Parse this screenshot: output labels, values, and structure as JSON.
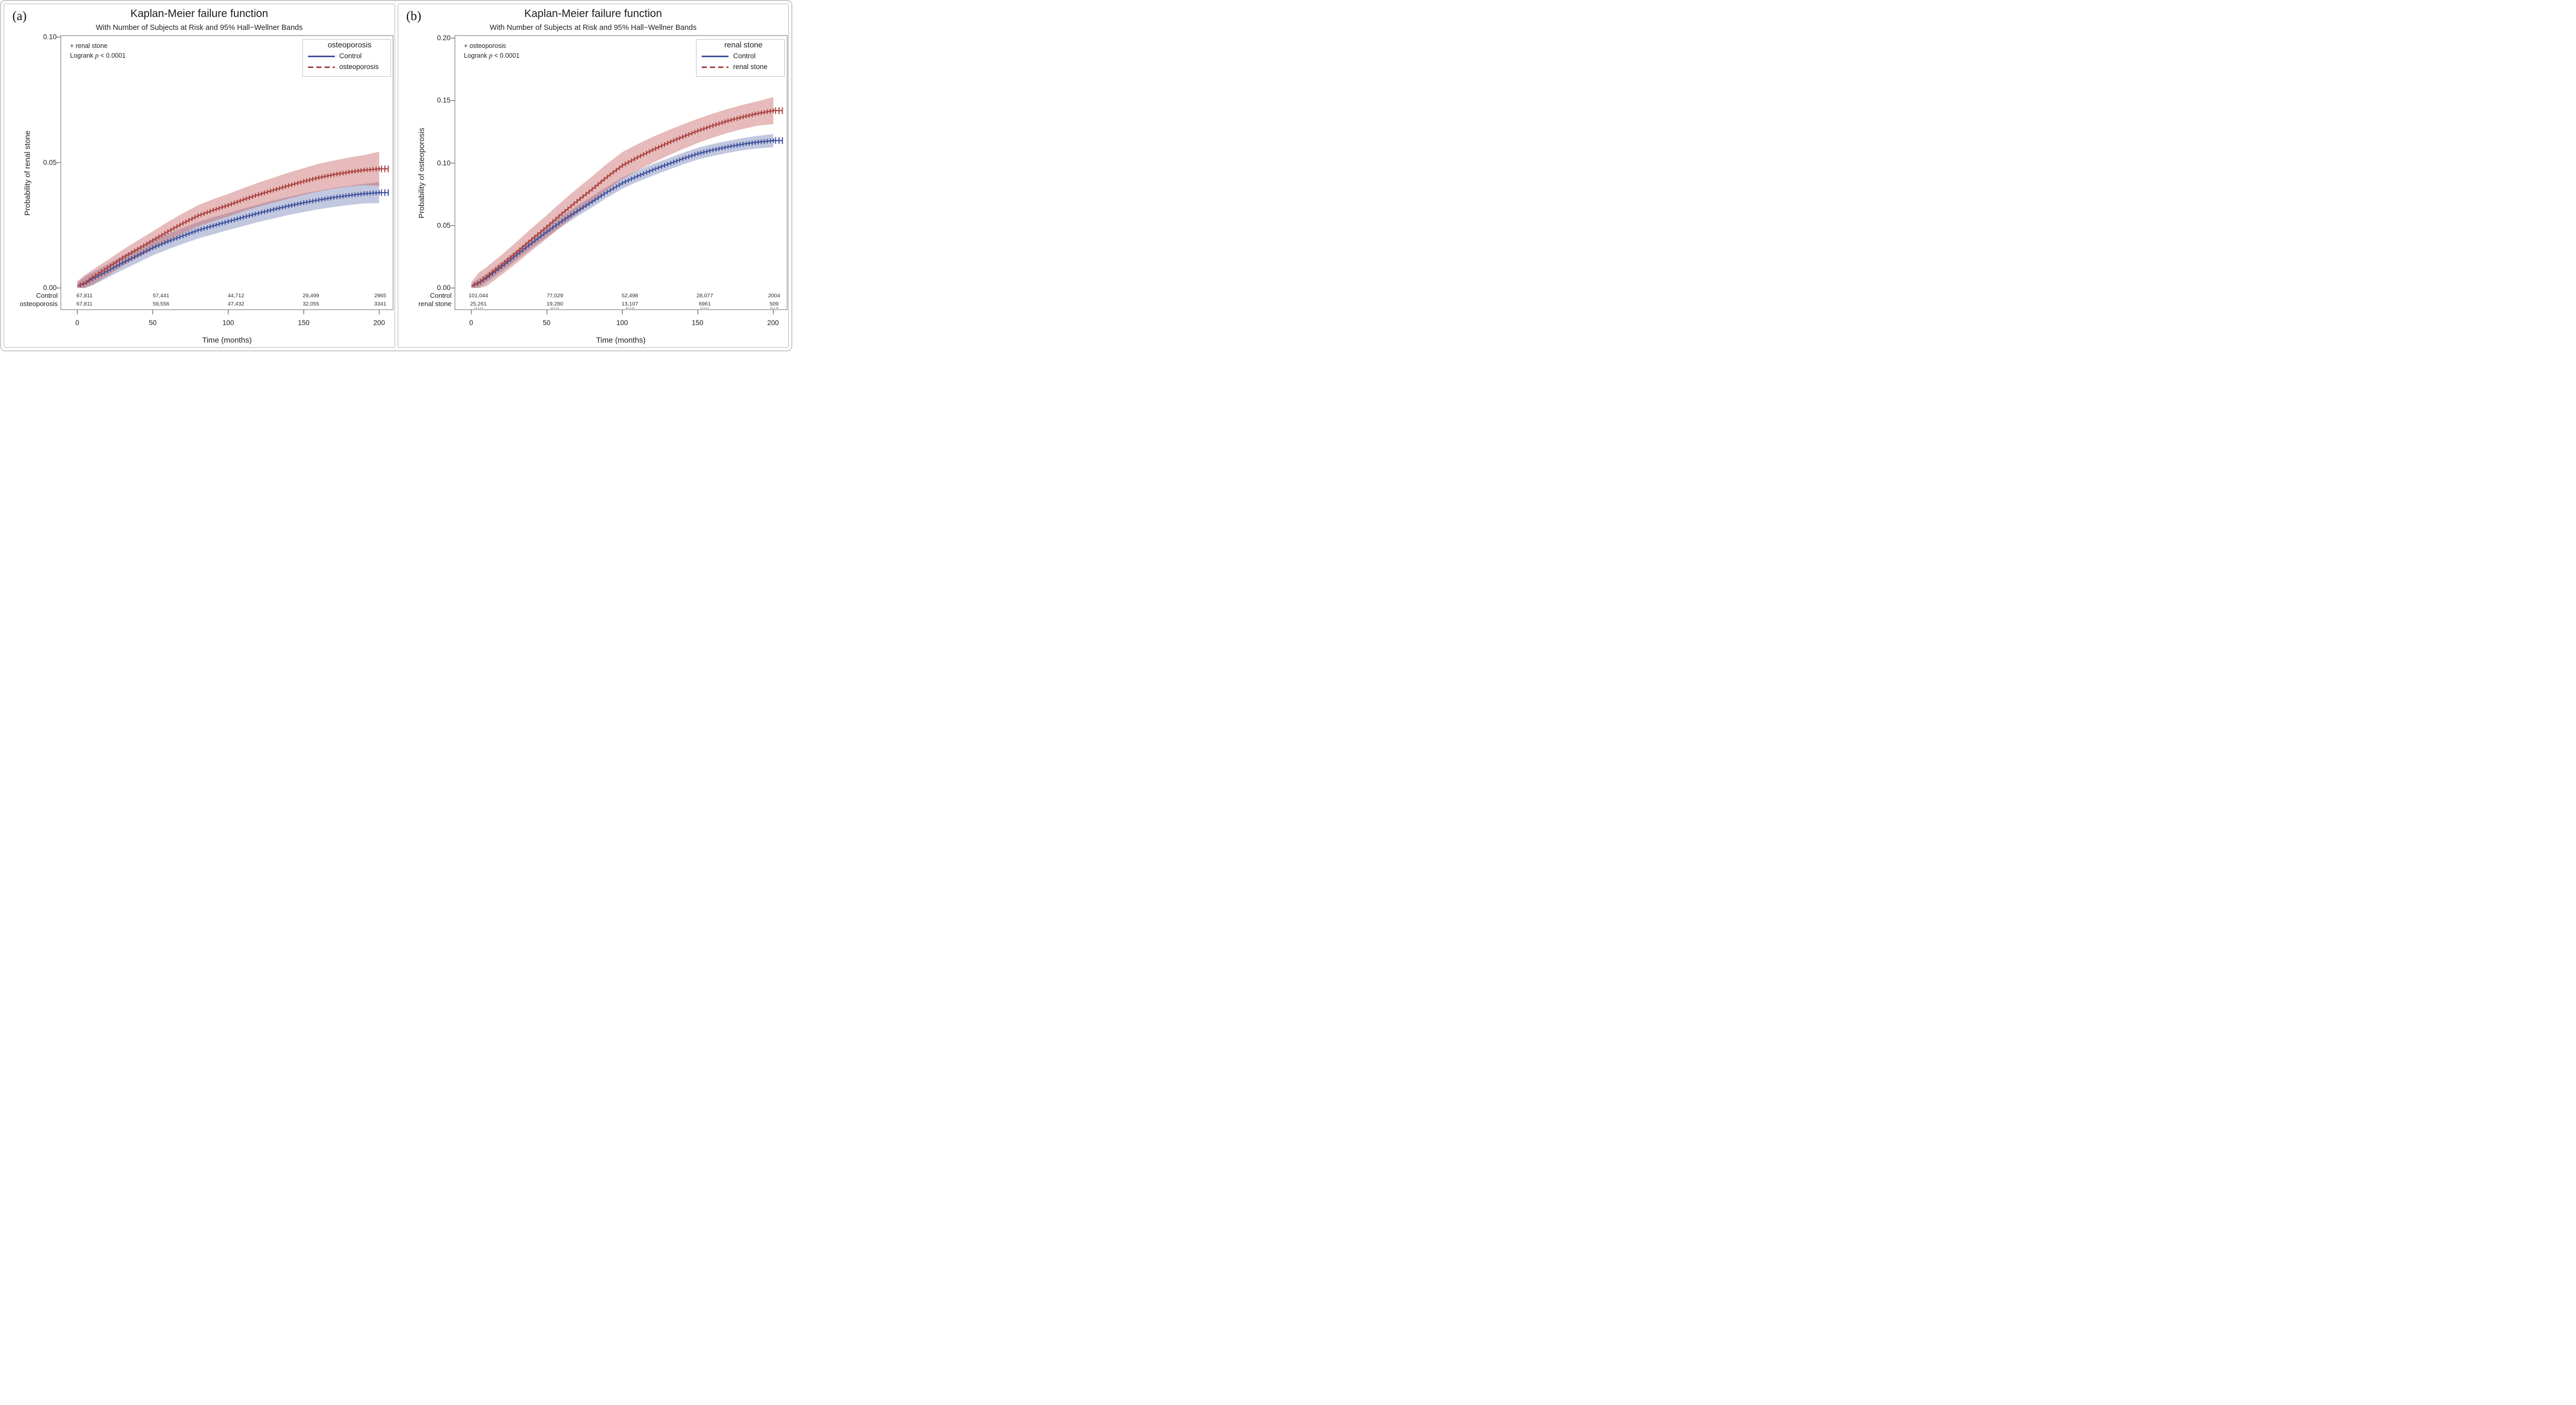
{
  "panels": [
    {
      "panel_label": "(a)",
      "title": "Kaplan-Meier failure function",
      "subtitle": "With Number of Subjects at Risk and 95% Hall−Wellner Bands",
      "annotation": {
        "marker_note": "+ renal stone",
        "logrank_word": "Logrank",
        "logrank_p": "p",
        "logrank_rest": "< 0.0001"
      },
      "legend": {
        "title": "osteoporosis",
        "entries": [
          {
            "label": "Control",
            "color": "#3D4F9B",
            "style": "solid"
          },
          {
            "label": "osteoporosis",
            "color": "#A8403E",
            "style": "dashed"
          }
        ]
      },
      "y_axis": {
        "label": "Probability of renal stone",
        "ticks": [
          "0.10",
          "0.05",
          "0.00"
        ]
      },
      "x_axis": {
        "label": "Time (months)",
        "ticks": [
          "0",
          "50",
          "100",
          "150",
          "200"
        ]
      },
      "risk_table": {
        "rows": [
          {
            "label": "Control",
            "values": [
              "67,811",
              "57,441",
              "44,712",
              "29,499",
              "2965"
            ]
          },
          {
            "label": "osteoporosis",
            "values": [
              "67,811",
              "59,556",
              "47,432",
              "32,055",
              "3341"
            ]
          }
        ],
        "clipped_third_row": false
      }
    },
    {
      "panel_label": "(b)",
      "title": "Kaplan-Meier failure function",
      "subtitle": "With Number of Subjects at Risk and 95% Hall−Wellner Bands",
      "annotation": {
        "marker_note": "+ osteoporosis",
        "logrank_word": "Logrank",
        "logrank_p": "p",
        "logrank_rest": "< 0.0001"
      },
      "legend": {
        "title": "renal stone",
        "entries": [
          {
            "label": "Control",
            "color": "#3D4F9B",
            "style": "solid"
          },
          {
            "label": "renal stone",
            "color": "#A8403E",
            "style": "dashed"
          }
        ]
      },
      "y_axis": {
        "label": "Probability of osteoporosis",
        "ticks": [
          "0.20",
          "0.15",
          "0.10",
          "0.05",
          "0.00"
        ]
      },
      "x_axis": {
        "label": "Time (months)",
        "ticks": [
          "0",
          "50",
          "100",
          "150",
          "200"
        ]
      },
      "risk_table": {
        "rows": [
          {
            "label": "Control",
            "values": [
              "101,044",
              "77,029",
              "52,498",
              "28,077",
              "2004"
            ]
          },
          {
            "label": "renal stone",
            "values": [
              "25,261",
              "19,280",
              "13,107",
              "6961",
              "509"
            ]
          }
        ],
        "clipped_third_row": true
      }
    }
  ],
  "chart_data": [
    {
      "type": "line",
      "title": "Kaplan-Meier failure function",
      "subtitle": "With Number of Subjects at Risk and 95% Hall−Wellner Bands",
      "xlabel": "Time (months)",
      "ylabel": "Probability of renal stone",
      "xlim": [
        0,
        200
      ],
      "ylim": [
        0,
        0.1
      ],
      "grid": false,
      "legend_position": "top-right",
      "legend_title": "osteoporosis",
      "annotations": [
        "+ renal stone",
        "Logrank p < 0.0001"
      ],
      "x": [
        0,
        5,
        10,
        20,
        30,
        40,
        50,
        60,
        70,
        80,
        90,
        100,
        110,
        120,
        130,
        140,
        150,
        160,
        170,
        180,
        190,
        200
      ],
      "series": [
        {
          "name": "Control",
          "color": "#3D4F9B",
          "band_color": "rgba(95,110,172,0.38)",
          "values": [
            0.0008,
            0.0018,
            0.0036,
            0.0068,
            0.01,
            0.013,
            0.016,
            0.0185,
            0.0208,
            0.023,
            0.0248,
            0.0265,
            0.0282,
            0.0298,
            0.0313,
            0.0327,
            0.034,
            0.0351,
            0.0361,
            0.0369,
            0.0376,
            0.038
          ],
          "band_half_width": [
            0.0015,
            0.0028,
            0.0026,
            0.0027,
            0.0028,
            0.0029,
            0.003,
            0.0031,
            0.0032,
            0.0033,
            0.0034,
            0.0034,
            0.0035,
            0.0035,
            0.0036,
            0.0036,
            0.0037,
            0.0037,
            0.0038,
            0.0038,
            0.0039,
            0.0042
          ]
        },
        {
          "name": "osteoporosis",
          "color": "#A8403E",
          "band_color": "rgba(198,94,92,0.42)",
          "values": [
            0.0008,
            0.002,
            0.0042,
            0.008,
            0.012,
            0.0155,
            0.019,
            0.0225,
            0.0258,
            0.0288,
            0.031,
            0.033,
            0.0352,
            0.0372,
            0.039,
            0.0408,
            0.0425,
            0.044,
            0.0452,
            0.0462,
            0.047,
            0.0475
          ],
          "band_half_width": [
            0.0018,
            0.0032,
            0.003,
            0.0031,
            0.0032,
            0.0034,
            0.0036,
            0.0038,
            0.004,
            0.0042,
            0.0044,
            0.0045,
            0.0046,
            0.0048,
            0.005,
            0.0052,
            0.0053,
            0.0055,
            0.0056,
            0.0058,
            0.006,
            0.0068
          ]
        }
      ],
      "number_at_risk": {
        "times": [
          0,
          50,
          100,
          150,
          200
        ],
        "Control": [
          67811,
          57441,
          44712,
          29499,
          2965
        ],
        "osteoporosis": [
          67811,
          59556,
          47432,
          32055,
          3341
        ]
      }
    },
    {
      "type": "line",
      "title": "Kaplan-Meier failure function",
      "subtitle": "With Number of Subjects at Risk and 95% Hall−Wellner Bands",
      "xlabel": "Time (months)",
      "ylabel": "Probability of osteoporosis",
      "xlim": [
        0,
        200
      ],
      "ylim": [
        0,
        0.2
      ],
      "grid": false,
      "legend_position": "top-right",
      "legend_title": "renal stone",
      "annotations": [
        "+ osteoporosis",
        "Logrank p < 0.0001"
      ],
      "x": [
        0,
        5,
        10,
        20,
        30,
        40,
        50,
        60,
        70,
        80,
        90,
        100,
        110,
        120,
        130,
        140,
        150,
        160,
        170,
        180,
        190,
        200
      ],
      "series": [
        {
          "name": "Control",
          "color": "#3D4F9B",
          "band_color": "rgba(95,110,172,0.38)",
          "values": [
            0.0015,
            0.004,
            0.008,
            0.017,
            0.0265,
            0.036,
            0.045,
            0.0535,
            0.0615,
            0.069,
            0.0768,
            0.084,
            0.0895,
            0.0945,
            0.099,
            0.1035,
            0.1075,
            0.1105,
            0.113,
            0.1152,
            0.1168,
            0.118
          ],
          "band_half_width": [
            0.002,
            0.0038,
            0.0036,
            0.0038,
            0.004,
            0.0041,
            0.0042,
            0.0043,
            0.0043,
            0.0044,
            0.0044,
            0.0045,
            0.0045,
            0.0046,
            0.0046,
            0.0047,
            0.0047,
            0.0048,
            0.0048,
            0.0049,
            0.005,
            0.0053
          ]
        },
        {
          "name": "renal stone",
          "color": "#A8403E",
          "band_color": "rgba(198,94,92,0.42)",
          "values": [
            0.0015,
            0.0045,
            0.009,
            0.0185,
            0.0285,
            0.039,
            0.049,
            0.0595,
            0.0695,
            0.079,
            0.089,
            0.098,
            0.1045,
            0.1105,
            0.116,
            0.121,
            0.1258,
            0.13,
            0.1338,
            0.137,
            0.1398,
            0.142
          ],
          "band_half_width": [
            0.0032,
            0.008,
            0.0076,
            0.008,
            0.0085,
            0.009,
            0.0094,
            0.0098,
            0.0101,
            0.0104,
            0.0106,
            0.0108,
            0.0106,
            0.0104,
            0.0101,
            0.0099,
            0.0097,
            0.0096,
            0.0096,
            0.0097,
            0.0098,
            0.0108
          ]
        }
      ],
      "number_at_risk": {
        "times": [
          0,
          50,
          100,
          150,
          200
        ],
        "Control": [
          101044,
          77029,
          52498,
          28077,
          2004
        ],
        "renal stone": [
          25261,
          19280,
          13107,
          6961,
          509
        ]
      }
    }
  ]
}
